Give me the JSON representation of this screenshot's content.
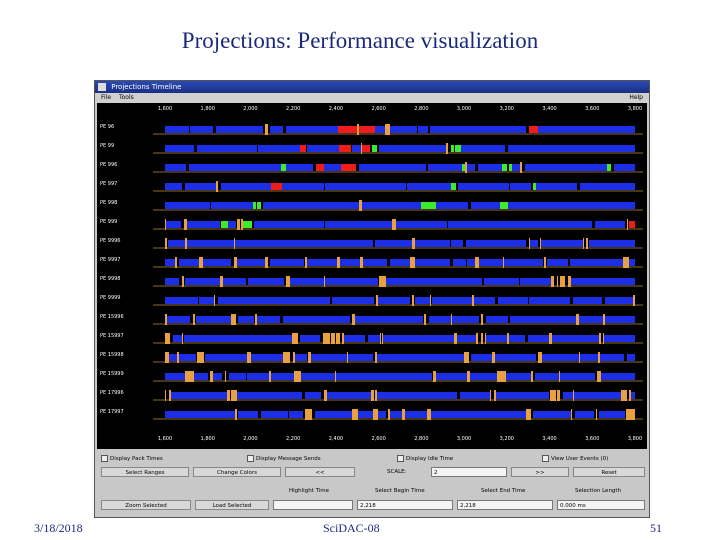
{
  "slide": {
    "title": "Projections: Performance visualization",
    "footer_date": "3/18/2018",
    "footer_center": "SciDAC-08",
    "footer_page": "51"
  },
  "window": {
    "title": "Projections Timeline",
    "menu": [
      "File",
      "Tools"
    ],
    "help": "Help"
  },
  "timeline": {
    "axis_ticks": [
      "1,600",
      "1,800",
      "2,000",
      "2,200",
      "2,400",
      "2,600",
      "2,800",
      "3,000",
      "3,200",
      "3,400",
      "3,600",
      "3,800"
    ],
    "pe_labels": [
      "PE 96",
      "PE 99",
      "PE 996",
      "PE 997",
      "PE 998",
      "PE 999",
      "PE 9996",
      "PE 9997",
      "PE 9998",
      "PE 9999",
      "PE 15996",
      "PE 15997",
      "PE 15998",
      "PE 15999",
      "PE 17996",
      "PE 17997"
    ],
    "colors": {
      "blue": "#1c2ee6",
      "red": "#ee1c1c",
      "green": "#3cec2c",
      "orange": "#e8a040",
      "background": "#000000"
    }
  },
  "controls": {
    "checkboxes": [
      "Display Pack Times",
      "Display Message Sends",
      "Display Idle Time",
      "View User Events (0)"
    ],
    "select_ranges": "Select Ranges",
    "change_colors": "Change Colors",
    "scale_prev": "<<",
    "scale_label": "SCALE:",
    "scale_value": "2",
    "scale_next": ">>",
    "reset": "Reset",
    "zoom_selected": "Zoom Selected",
    "load_selected": "Load Selected",
    "highlight_time_label": "Highlight Time",
    "select_begin_label": "Select Begin Time",
    "select_end_label": "Select End Time",
    "selection_length_label": "Selection Length",
    "highlight_time_value": "",
    "select_begin_value": "2,218",
    "select_end_value": "2,218",
    "selection_length_value": "0.000 ms"
  }
}
